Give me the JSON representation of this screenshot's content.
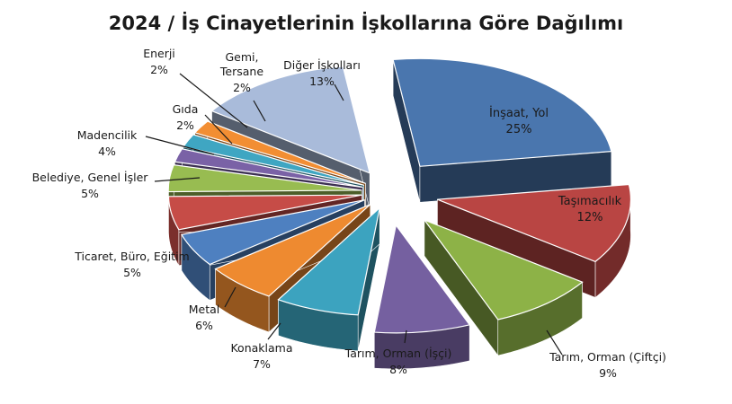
{
  "chart_data": {
    "type": "pie",
    "title": "2024 / İş Cinayetlerinin İşkollarına Göre Dağılımı",
    "slices": [
      {
        "label": "İnşaat, Yol",
        "pct_label": "25%",
        "value": 25,
        "color": "#4A76AE"
      },
      {
        "label": "Taşımacılık",
        "pct_label": "12%",
        "value": 12,
        "color": "#B94543"
      },
      {
        "label": "Tarım, Orman (Çiftçi)",
        "pct_label": "9%",
        "value": 9,
        "color": "#8DB247"
      },
      {
        "label": "Tarım, Orman (İşçi)",
        "pct_label": "8%",
        "value": 8,
        "color": "#7560A0"
      },
      {
        "label": "Konaklama",
        "pct_label": "7%",
        "value": 7,
        "color": "#3CA3BF"
      },
      {
        "label": "Metal",
        "pct_label": "6%",
        "value": 6,
        "color": "#EE8A30"
      },
      {
        "label": "Ticaret, Büro, Eğitim",
        "pct_label": "5%",
        "value": 5,
        "color": "#4E80C0"
      },
      {
        "label": "Belediye, Genel İşler",
        "pct_label": "5%",
        "value": 5,
        "color": "#C64C47"
      },
      {
        "label": "Madencilik",
        "pct_label": "4%",
        "value": 4,
        "color": "#98BC51"
      },
      {
        "label": "Gıda",
        "pct_label": "2%",
        "value": 2,
        "color": "#7A62A6"
      },
      {
        "label": "Enerji",
        "pct_label": "2%",
        "value": 2,
        "color": "#3FA6C2"
      },
      {
        "label": "Gemi,\nTersane",
        "pct_label": "2%",
        "value": 2,
        "color": "#F28E33"
      },
      {
        "label": "Diğer İşkolları",
        "pct_label": "13%",
        "value": 13,
        "color": "#A9BBDA"
      }
    ],
    "legend": "none"
  }
}
